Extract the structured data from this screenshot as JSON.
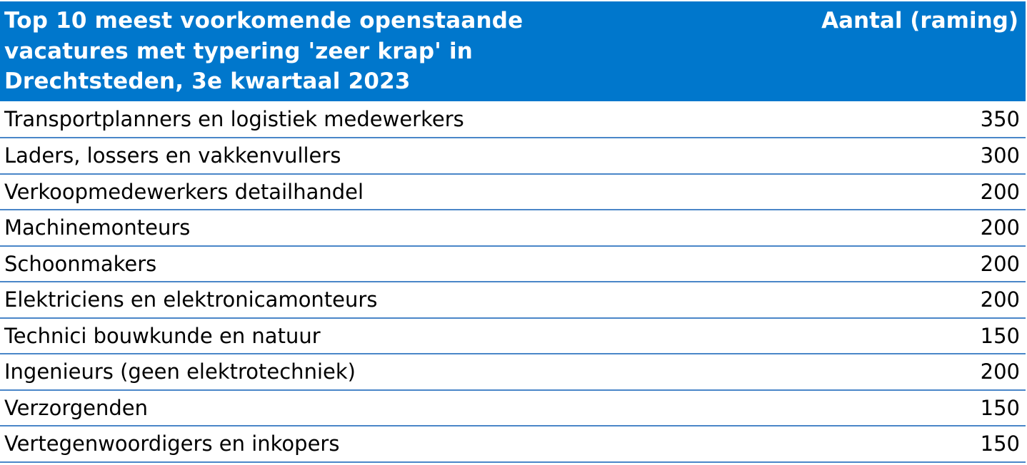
{
  "colors": {
    "header_bg": "#0077cc",
    "header_text": "#ffffff",
    "row_divider": "#4a86c8"
  },
  "chart_data": {
    "type": "table",
    "title": "Top 10 meest voorkomende openstaande vacatures met typering 'zeer krap' in Drechtsteden, 3e kwartaal 2023",
    "title_lines": [
      "Top 10 meest voorkomende openstaande",
      "vacatures met typering 'zeer krap' in",
      "Drechtsteden, 3e kwartaal 2023"
    ],
    "value_header": "Aantal (raming)",
    "rows": [
      {
        "label": "Transportplanners en logistiek medewerkers",
        "value": "350"
      },
      {
        "label": "Laders, lossers en vakkenvullers",
        "value": "300"
      },
      {
        "label": "Verkoopmedewerkers detailhandel",
        "value": "200"
      },
      {
        "label": "Machinemonteurs",
        "value": "200"
      },
      {
        "label": "Schoonmakers",
        "value": "200"
      },
      {
        "label": "Elektriciens en elektronicamonteurs",
        "value": "200"
      },
      {
        "label": "Technici bouwkunde en natuur",
        "value": "150"
      },
      {
        "label": "Ingenieurs (geen elektrotechniek)",
        "value": "200"
      },
      {
        "label": "Verzorgenden",
        "value": "150"
      },
      {
        "label": "Vertegenwoordigers en inkopers",
        "value": "150"
      }
    ]
  }
}
